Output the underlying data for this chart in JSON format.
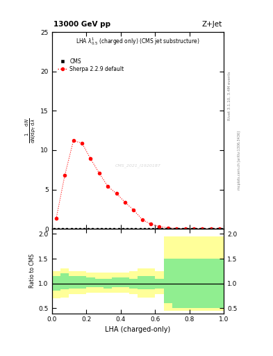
{
  "title_left": "13000 GeV pp",
  "title_right": "Z+Jet",
  "plot_title": "LHA $\\lambda^{1}_{0.5}$ (charged only) (CMS jet substructure)",
  "ylabel_main_lines": [
    "$\\frac{1}{\\mathrm{d}N / \\mathrm{d}p_T}\\frac{\\mathrm{d}N}{\\mathrm{d}\\lambda}$"
  ],
  "ylabel_main_text": "mathrm d N /\nmathrm d p_T mathrm d lambda",
  "ylabel_ratio": "Ratio to CMS",
  "xlabel": "LHA (charged-only)",
  "rivet_label": "Rivet 3.1.10, 3.4M events",
  "mcplots_label": "mcplots.cern.ch [arXiv:1306.3436]",
  "watermark": "CMS_2021_I1920187",
  "cms_label": "CMS",
  "sherpa_label": "Sherpa 2.2.9 default",
  "sherpa_x": [
    0.025,
    0.075,
    0.125,
    0.175,
    0.225,
    0.275,
    0.325,
    0.375,
    0.425,
    0.475,
    0.525,
    0.575,
    0.625,
    0.675,
    0.725,
    0.775,
    0.825,
    0.875,
    0.925,
    0.975
  ],
  "sherpa_y": [
    1.3,
    6.8,
    11.2,
    10.9,
    8.9,
    7.1,
    5.4,
    4.5,
    3.4,
    2.4,
    1.2,
    0.6,
    0.3,
    0.15,
    0.05,
    0.02,
    0.01,
    0.005,
    0.003,
    0.001
  ],
  "cms_bins": [
    0.0,
    0.025,
    0.05,
    0.075,
    0.1,
    0.125,
    0.15,
    0.175,
    0.2,
    0.225,
    0.25,
    0.275,
    0.3,
    0.325,
    0.35,
    0.375,
    0.4,
    0.425,
    0.45,
    0.475,
    0.5,
    0.525,
    0.55,
    0.575,
    0.6,
    0.625,
    0.65,
    0.675,
    0.7,
    0.725,
    0.75,
    0.775,
    0.8,
    0.825,
    0.85,
    0.875,
    0.9,
    0.925,
    0.95,
    0.975,
    1.0
  ],
  "ratio_bins": [
    0.0,
    0.05,
    0.1,
    0.15,
    0.2,
    0.25,
    0.3,
    0.35,
    0.4,
    0.45,
    0.5,
    0.55,
    0.6,
    0.65,
    0.7,
    0.75,
    0.8,
    0.85,
    0.9,
    0.95,
    1.0
  ],
  "ratio_green_lo": [
    0.85,
    0.88,
    0.9,
    0.9,
    0.93,
    0.92,
    0.9,
    0.93,
    0.93,
    0.9,
    0.88,
    0.88,
    0.9,
    0.6,
    0.5,
    0.5,
    0.5,
    0.5,
    0.5,
    0.5
  ],
  "ratio_green_hi": [
    1.15,
    1.2,
    1.15,
    1.15,
    1.12,
    1.1,
    1.1,
    1.12,
    1.12,
    1.1,
    1.15,
    1.15,
    1.1,
    1.5,
    1.5,
    1.5,
    1.5,
    1.5,
    1.5,
    1.5
  ],
  "ratio_yellow_lo": [
    0.7,
    0.72,
    0.78,
    0.78,
    0.82,
    0.82,
    0.82,
    0.82,
    0.82,
    0.78,
    0.72,
    0.72,
    0.78,
    0.45,
    0.45,
    0.45,
    0.45,
    0.45,
    0.45,
    0.45
  ],
  "ratio_yellow_hi": [
    1.25,
    1.3,
    1.25,
    1.25,
    1.22,
    1.22,
    1.22,
    1.22,
    1.22,
    1.25,
    1.3,
    1.3,
    1.25,
    1.95,
    1.95,
    1.95,
    1.95,
    1.95,
    1.95,
    1.95
  ],
  "ylim_main": [
    0,
    25
  ],
  "ylim_ratio": [
    0.4,
    2.1
  ],
  "xlim": [
    0.0,
    1.0
  ],
  "color_cms": "black",
  "color_sherpa": "red",
  "color_green": "#90EE90",
  "color_yellow": "#FFFF99",
  "background_color": "white"
}
